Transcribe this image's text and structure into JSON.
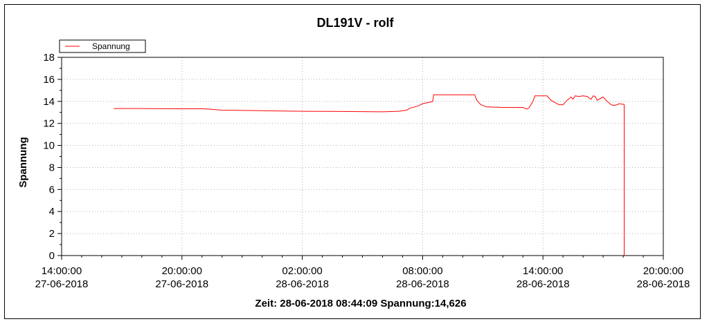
{
  "colors": {
    "series": "#ff0000",
    "grid": "#b0b0b0",
    "axis": "#000000"
  },
  "status_line": "Zeit: 28-06-2018 08:44:09 Spannung:14,626",
  "chart_data": {
    "type": "line",
    "title": "DL191V - rolf",
    "xlabel": "",
    "ylabel": "Spannung",
    "ylim": [
      0,
      18
    ],
    "yticks": [
      0,
      2,
      4,
      6,
      8,
      10,
      12,
      14,
      16,
      18
    ],
    "x_unit": "hours since 27-06-2018 00:00",
    "xlim": [
      14,
      44
    ],
    "xticks": [
      {
        "x": 14,
        "time": "14:00:00",
        "date": "27-06-2018"
      },
      {
        "x": 20,
        "time": "20:00:00",
        "date": "27-06-2018"
      },
      {
        "x": 26,
        "time": "02:00:00",
        "date": "28-06-2018"
      },
      {
        "x": 32,
        "time": "08:00:00",
        "date": "28-06-2018"
      },
      {
        "x": 38,
        "time": "14:00:00",
        "date": "28-06-2018"
      },
      {
        "x": 44,
        "time": "20:00:00",
        "date": "28-06-2018"
      }
    ],
    "grid": true,
    "legend": {
      "position": "top-left"
    },
    "series": [
      {
        "name": "Spannung",
        "x": [
          16.6,
          18.0,
          20.0,
          21.0,
          21.3,
          22.0,
          24.0,
          26.0,
          28.0,
          30.0,
          30.8,
          31.2,
          31.4,
          31.6,
          31.8,
          32.0,
          32.3,
          32.5,
          32.55,
          33.0,
          34.0,
          34.6,
          34.7,
          34.9,
          35.2,
          36.0,
          37.0,
          37.2,
          37.3,
          37.5,
          37.6,
          38.0,
          38.2,
          38.4,
          38.6,
          38.8,
          39.0,
          39.2,
          39.4,
          39.5,
          39.6,
          39.8,
          40.0,
          40.2,
          40.4,
          40.5,
          40.6,
          40.7,
          40.9,
          41.0,
          41.2,
          41.4,
          41.5,
          41.6,
          41.7,
          41.8,
          41.9,
          42.0,
          42.05,
          42.05
        ],
        "y": [
          13.35,
          13.35,
          13.33,
          13.33,
          13.3,
          13.2,
          13.15,
          13.1,
          13.08,
          13.05,
          13.1,
          13.2,
          13.4,
          13.5,
          13.6,
          13.8,
          13.9,
          14.0,
          14.6,
          14.6,
          14.6,
          14.6,
          14.1,
          13.7,
          13.5,
          13.45,
          13.45,
          13.3,
          13.4,
          14.0,
          14.5,
          14.5,
          14.5,
          14.1,
          13.9,
          13.7,
          13.7,
          14.1,
          14.4,
          14.2,
          14.5,
          14.45,
          14.5,
          14.45,
          14.2,
          14.5,
          14.45,
          14.1,
          14.3,
          14.4,
          14.0,
          13.7,
          13.65,
          13.65,
          13.7,
          13.8,
          13.75,
          13.75,
          13.7,
          0
        ]
      }
    ]
  }
}
